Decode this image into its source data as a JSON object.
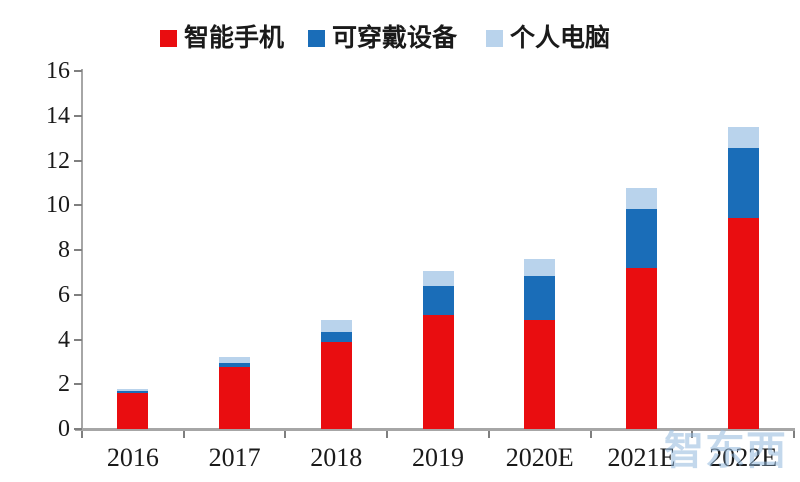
{
  "watermark": "智东西",
  "colors": {
    "smartphone_red": "#e90d10",
    "wearable_blue": "#1a6db8",
    "pc_lightblue": "#b9d3ec",
    "axis_line": "#a6a6a6",
    "tick_mark": "#7f7f7f",
    "label_text": "#1a1a1a"
  },
  "chart_data": {
    "type": "bar",
    "stacked": true,
    "title": "",
    "xlabel": "",
    "ylabel": "",
    "categories": [
      "2016",
      "2017",
      "2018",
      "2019",
      "2020E",
      "2021E",
      "2022E"
    ],
    "series": [
      {
        "name": "智能手机",
        "color": "#e90d10",
        "values": [
          1.6,
          2.75,
          3.9,
          5.1,
          4.85,
          7.2,
          9.45
        ]
      },
      {
        "name": "可穿戴设备",
        "color": "#1a6db8",
        "values": [
          0.1,
          0.2,
          0.45,
          1.3,
          2.0,
          2.65,
          3.1
        ]
      },
      {
        "name": "个人电脑",
        "color": "#b9d3ec",
        "values": [
          0.1,
          0.25,
          0.5,
          0.65,
          0.75,
          0.9,
          0.95
        ]
      }
    ],
    "totals": [
      1.8,
      3.2,
      4.85,
      7.05,
      7.6,
      10.75,
      13.5
    ],
    "ylim": [
      0,
      16
    ],
    "yticks": [
      0,
      2,
      4,
      6,
      8,
      10,
      12,
      14,
      16
    ],
    "grid": false,
    "legend_position": "top"
  }
}
